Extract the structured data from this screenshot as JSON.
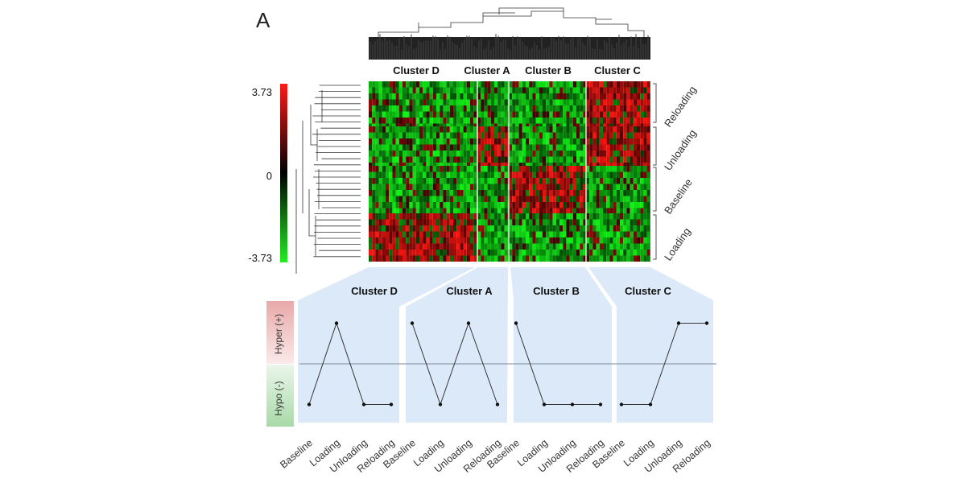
{
  "panel_label": "A",
  "color_scale": {
    "max_label": "3.73",
    "mid_label": "0",
    "min_label": "-3.73",
    "high_color": "#ff1a1a",
    "low_color": "#22ee22",
    "mid_color": "#000000"
  },
  "heatmap": {
    "column_clusters": [
      "Cluster D",
      "Cluster A",
      "Cluster B",
      "Cluster C"
    ],
    "row_groups": [
      "Reloading",
      "Unloading",
      "Baseline",
      "Loading"
    ]
  },
  "profiles": {
    "hyper_label": "Hyper (+)",
    "hypo_label": "Hypo (-)",
    "hyper_color": "#e8a9a9",
    "hypo_color": "#a9d9a9",
    "panel_fill": "#dce9f8"
  },
  "chart_data": [
    {
      "type": "heatmap",
      "title": "",
      "columns": [
        "Cluster D",
        "Cluster A",
        "Cluster B",
        "Cluster C"
      ],
      "rows": [
        "Reloading",
        "Unloading",
        "Baseline",
        "Loading"
      ],
      "value_range": [
        -3.73,
        3.73
      ],
      "pattern": [
        [
          -1,
          -1,
          -1,
          1
        ],
        [
          -1,
          1,
          -1,
          1
        ],
        [
          -1,
          -1,
          1,
          -1
        ],
        [
          1,
          -1,
          -1,
          -1
        ]
      ]
    },
    {
      "type": "line",
      "title": "",
      "categories": [
        "Baseline",
        "Loading",
        "Unloading",
        "Reloading"
      ],
      "ylim": [
        -1,
        1
      ],
      "series": [
        {
          "name": "Cluster D",
          "values": [
            -0.5,
            0.5,
            -0.5,
            -0.5
          ]
        },
        {
          "name": "Cluster A",
          "values": [
            0.5,
            -0.5,
            0.5,
            -0.5
          ]
        },
        {
          "name": "Cluster B",
          "values": [
            0.5,
            -0.5,
            -0.5,
            -0.5
          ]
        },
        {
          "name": "Cluster C",
          "values": [
            -0.5,
            -0.5,
            0.5,
            0.5
          ]
        }
      ]
    }
  ]
}
